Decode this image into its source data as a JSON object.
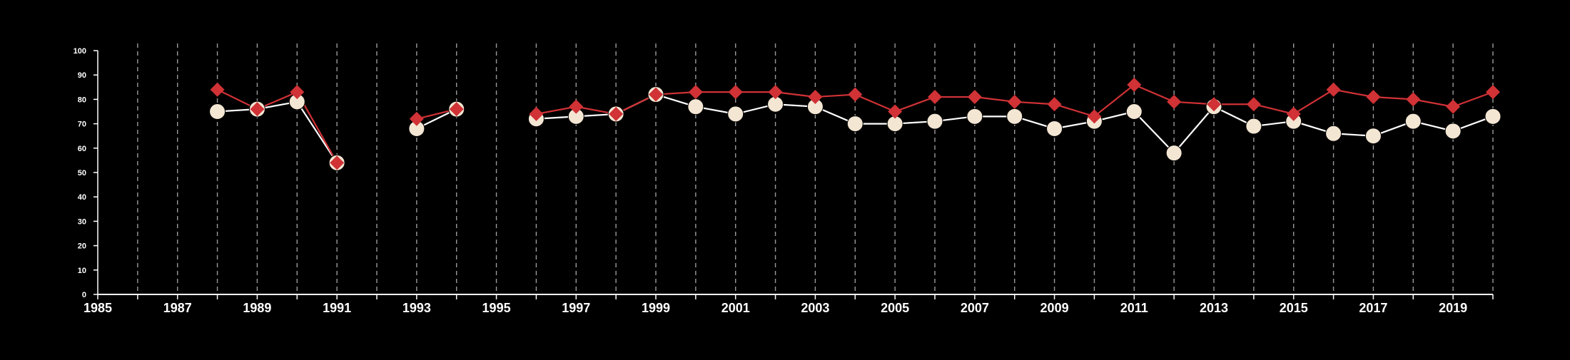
{
  "chart_data": {
    "type": "line",
    "title": "",
    "xlabel": "",
    "ylabel": "",
    "xlim": [
      1985,
      2020
    ],
    "ylim": [
      0,
      100
    ],
    "x_tick_labels": [
      "1985",
      "1987",
      "1989",
      "1991",
      "1993",
      "1995",
      "1997",
      "1999",
      "2001",
      "2003",
      "2005",
      "2007",
      "2009",
      "2011",
      "2013",
      "2015",
      "2017",
      "2019"
    ],
    "y_tick_labels": [
      "0",
      "10",
      "20",
      "30",
      "40",
      "50",
      "60",
      "70",
      "80",
      "90",
      "100"
    ],
    "vertical_grid": "dashed, every year",
    "colors": {
      "background": "#000000",
      "axis": "#ffffff",
      "grid": "#9a9a9a",
      "series_circle": "#f3e6d3",
      "series_diamond": "#d03236"
    },
    "x": [
      1985,
      1986,
      1987,
      1988,
      1989,
      1990,
      1991,
      1992,
      1993,
      1994,
      1995,
      1996,
      1997,
      1998,
      1999,
      2000,
      2001,
      2002,
      2003,
      2004,
      2005,
      2006,
      2007,
      2008,
      2009,
      2010,
      2011,
      2012,
      2013,
      2014,
      2015,
      2016,
      2017,
      2018,
      2019,
      2020
    ],
    "series": [
      {
        "marker": "circle",
        "line_color": "#ffffff",
        "fill": "#f3e6d3",
        "values": [
          null,
          null,
          null,
          75,
          76,
          79,
          54,
          null,
          68,
          76,
          null,
          72,
          73,
          74,
          82,
          77,
          74,
          78,
          77,
          70,
          70,
          71,
          73,
          73,
          68,
          71,
          75,
          58,
          77,
          69,
          71,
          66,
          65,
          71,
          67,
          73
        ]
      },
      {
        "marker": "diamond",
        "line_color": "#d03236",
        "fill": "#d03236",
        "values": [
          null,
          null,
          null,
          84,
          76,
          83,
          54,
          null,
          72,
          76,
          null,
          74,
          77,
          74,
          82,
          83,
          83,
          83,
          81,
          82,
          75,
          81,
          81,
          79,
          78,
          73,
          86,
          79,
          78,
          78,
          74,
          84,
          81,
          80,
          77,
          83
        ]
      }
    ]
  }
}
